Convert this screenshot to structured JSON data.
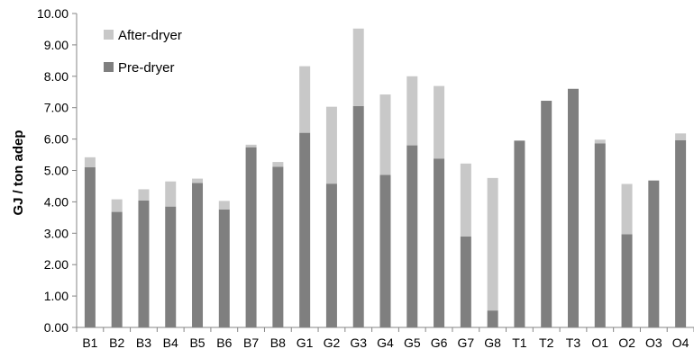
{
  "chart_data": {
    "type": "bar",
    "stacked": true,
    "categories": [
      "B1",
      "B2",
      "B3",
      "B4",
      "B5",
      "B6",
      "B7",
      "B8",
      "G1",
      "G2",
      "G3",
      "G4",
      "G5",
      "G6",
      "G7",
      "G8",
      "T1",
      "T2",
      "T3",
      "O1",
      "O2",
      "O3",
      "O4"
    ],
    "series": [
      {
        "name": "Pre-dryer",
        "color": "#7f7f7f",
        "values": [
          5.1,
          3.68,
          4.04,
          3.85,
          4.6,
          3.76,
          5.74,
          5.12,
          6.2,
          4.58,
          7.05,
          4.86,
          5.8,
          5.38,
          2.9,
          0.54,
          5.95,
          7.22,
          7.6,
          5.86,
          2.97,
          4.68,
          5.96
        ]
      },
      {
        "name": "After-dryer",
        "color": "#c8c8c8",
        "values": [
          0.32,
          0.4,
          0.36,
          0.8,
          0.14,
          0.27,
          0.08,
          0.15,
          2.12,
          2.45,
          2.47,
          2.56,
          2.2,
          2.31,
          2.32,
          4.22,
          0.0,
          0.0,
          0.0,
          0.12,
          1.6,
          0.0,
          0.22
        ]
      }
    ],
    "ylabel": "GJ / ton adep",
    "ylim": [
      0,
      10
    ],
    "yticks": [
      "0.00",
      "1.00",
      "2.00",
      "3.00",
      "4.00",
      "5.00",
      "6.00",
      "7.00",
      "8.00",
      "9.00",
      "10.00"
    ],
    "legend": {
      "position": "top-left",
      "entries": [
        "After-dryer",
        "Pre-dryer"
      ]
    },
    "grid": false
  }
}
